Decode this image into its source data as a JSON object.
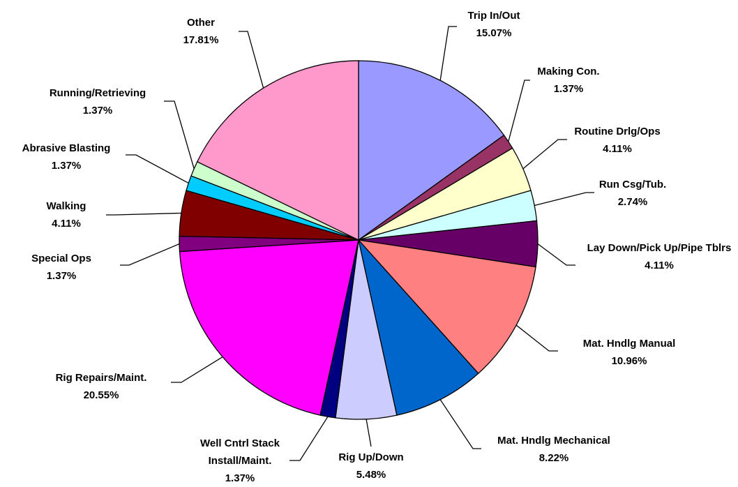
{
  "chart_data": {
    "type": "pie",
    "categories": [
      "Trip In/Out",
      "Making Con.",
      "Routine Drlg/Ops",
      "Run Csg/Tub.",
      "Lay Down/Pick Up/Pipe Tblrs",
      "Mat. Hndlg Manual",
      "Mat. Hndlg Mechanical",
      "Rig Up/Down",
      "Well Cntrl Stack Install/Maint.",
      "Rig Repairs/Maint.",
      "Special Ops",
      "Walking",
      "Abrasive Blasting",
      "Running/Retrieving",
      "Other"
    ],
    "values": [
      15.07,
      1.37,
      4.11,
      2.74,
      4.11,
      10.96,
      8.22,
      5.48,
      1.37,
      20.55,
      1.37,
      4.11,
      1.37,
      1.37,
      17.81
    ],
    "value_labels": [
      "15.07%",
      "1.37%",
      "4.11%",
      "2.74%",
      "4.11%",
      "10.96%",
      "8.22%",
      "5.48%",
      "1.37%",
      "20.55%",
      "1.37%",
      "4.11%",
      "1.37%",
      "1.37%",
      "17.81%"
    ],
    "colors": [
      "#9999ff",
      "#993366",
      "#ffffcc",
      "#ccffff",
      "#660066",
      "#ff8080",
      "#0066cc",
      "#ccccff",
      "#000080",
      "#ff00ff",
      "#800080",
      "#800000",
      "#00ccff",
      "#ccffcc",
      "#ff99cc"
    ]
  }
}
